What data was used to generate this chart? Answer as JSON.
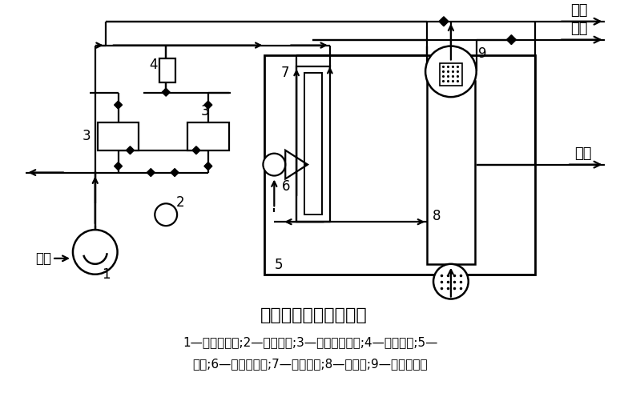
{
  "title": "深冷分离制氮工艺流程",
  "caption_line1": "1—空气压缩机;2—预冷机组;3—分子筛吸附器;4—电加热器;5—",
  "caption_line2": "冷箱;6—透平膨胀机;7—主换热器;8—精馏塔;9—冷凝蒸发器",
  "label_fk": "放空",
  "label_n2": "氮气",
  "label_ln2": "液氮",
  "label_air": "空气",
  "bg": "#ffffff",
  "lc": "#000000"
}
